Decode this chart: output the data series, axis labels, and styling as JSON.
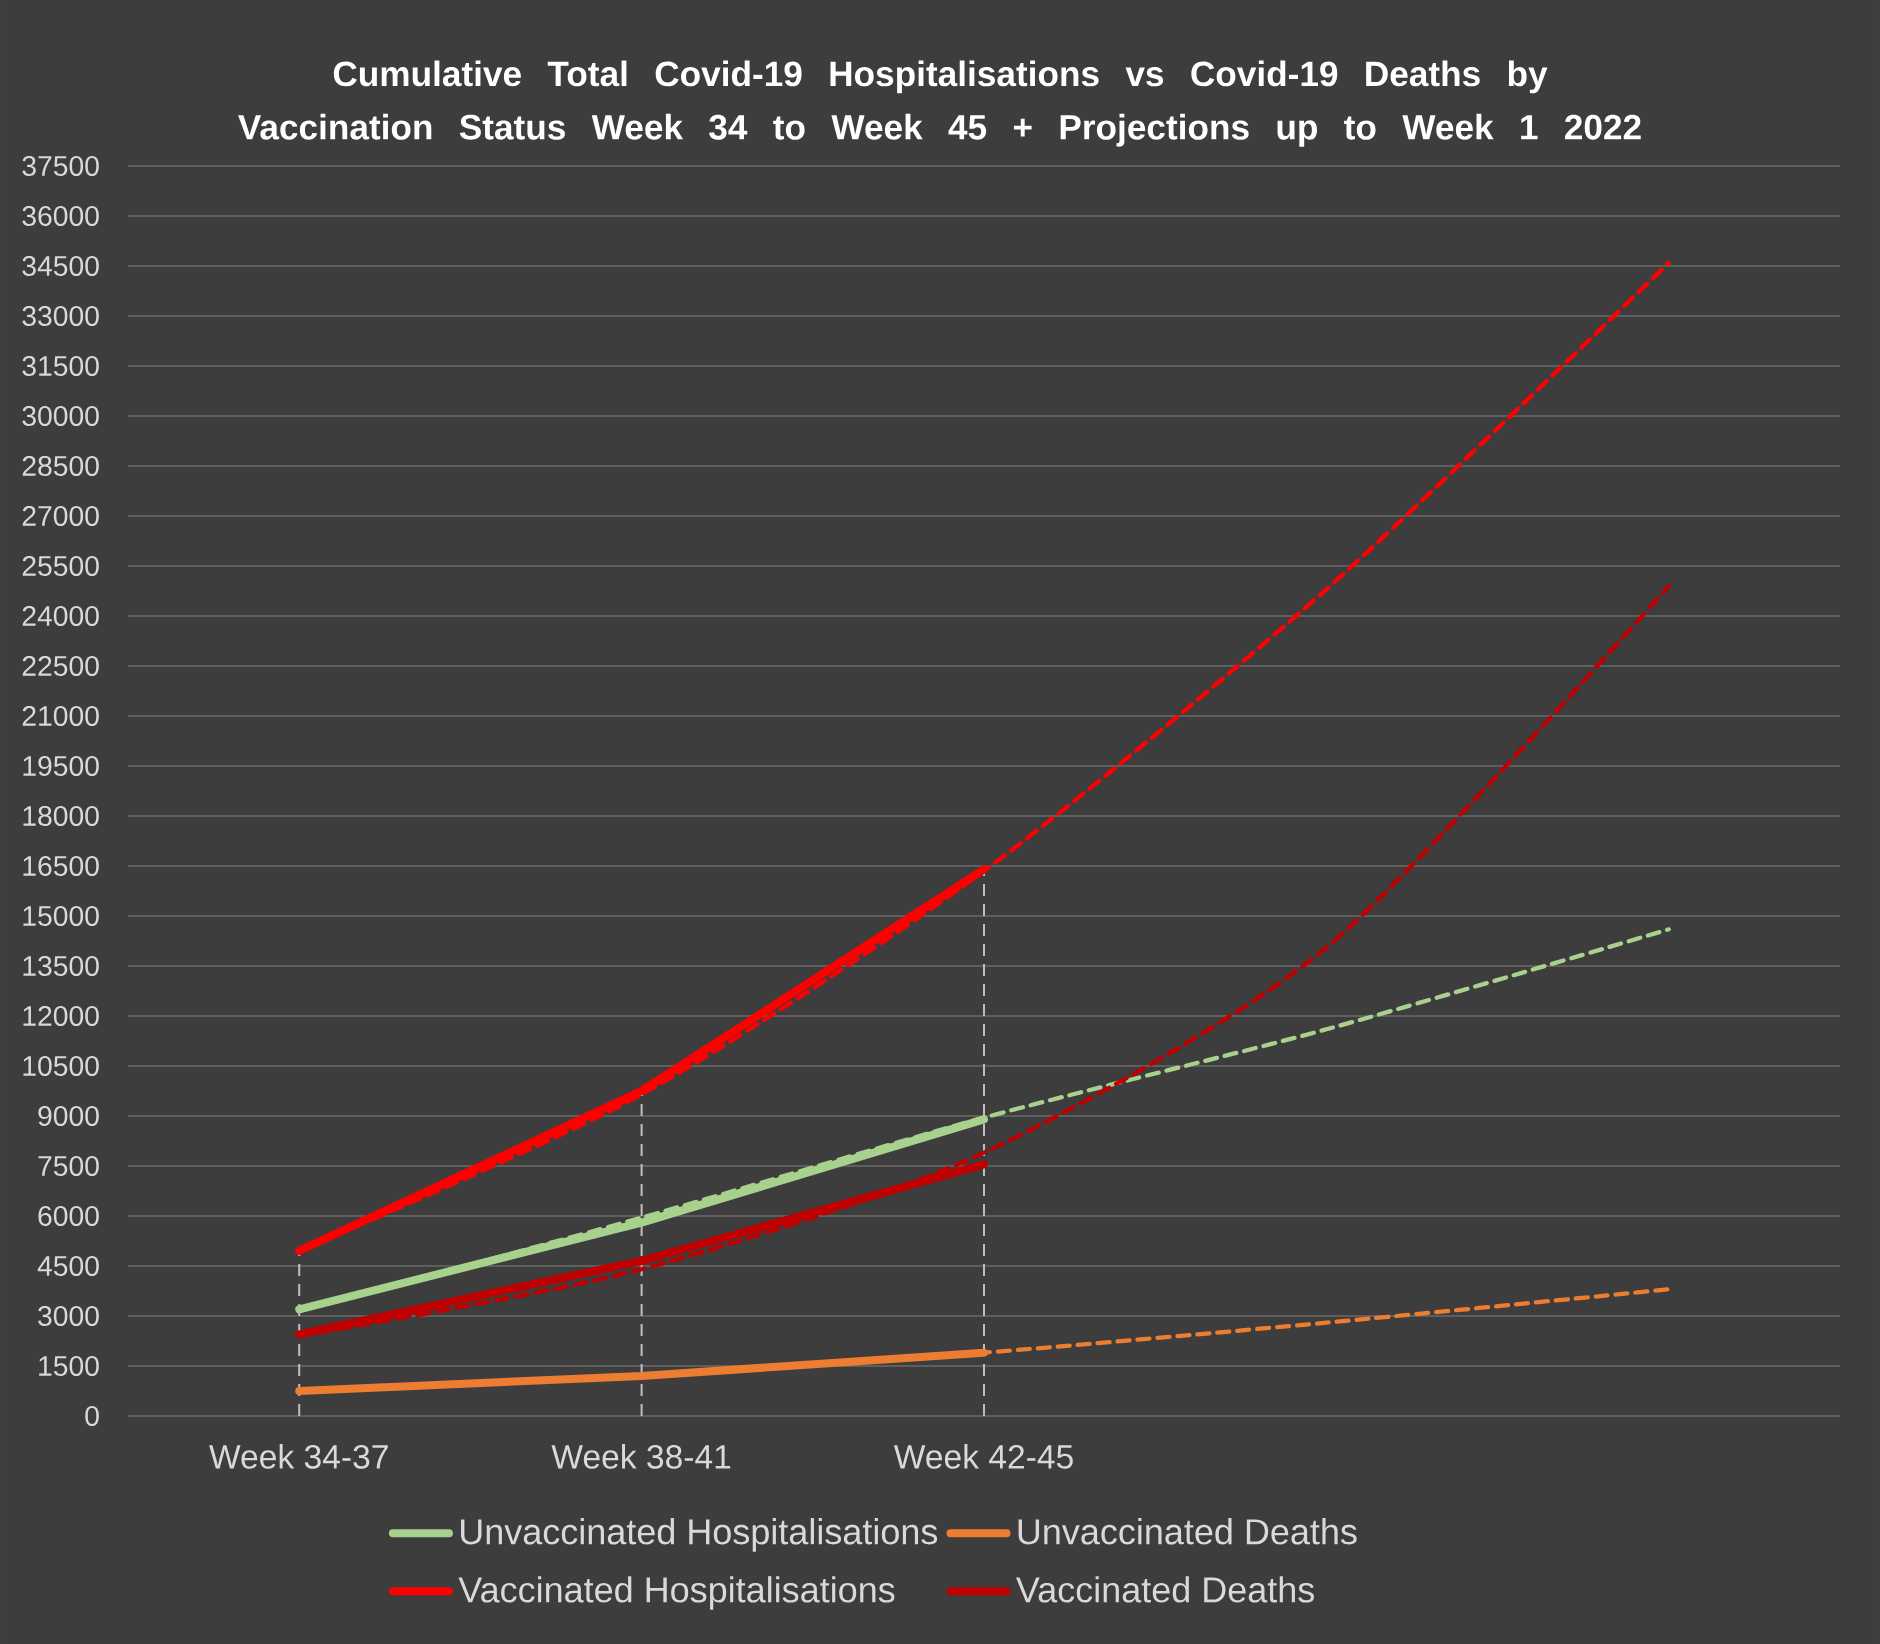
{
  "chart_data": {
    "type": "line",
    "title": "Cumulative Total Covid-19 Hospitalisations vs Covid-19 Deaths by Vaccination Status Week 34 to Week 45 + Projections up to Week 1 2022",
    "categories": [
      "Week 34-37",
      "Week 38-41",
      "Week 42-45",
      null,
      null
    ],
    "series": [
      {
        "name": "Unvaccinated Hospitalisations",
        "color": "#a9d18e",
        "values": [
          3200,
          5800,
          8900,
          null,
          null
        ]
      },
      {
        "name": "Unvaccinated Deaths",
        "color": "#ed7d31",
        "values": [
          750,
          1200,
          1900,
          null,
          null
        ]
      },
      {
        "name": "Vaccinated Hospitalisations",
        "color": "#ff0000",
        "values": [
          4950,
          9750,
          16400,
          null,
          null
        ]
      },
      {
        "name": "Vaccinated Deaths",
        "color": "#c00000",
        "values": [
          2450,
          4650,
          7550,
          null,
          null
        ]
      },
      {
        "color": "#a9d18e",
        "line_style": "dashed",
        "values": [
          3150,
          5950,
          8950,
          11600,
          14600
        ]
      },
      {
        "color": "#ed7d31",
        "line_style": "dashed",
        "values": [
          750,
          1200,
          1900,
          2800,
          3800
        ]
      },
      {
        "color": "#ff0000",
        "line_style": "dashed",
        "values": [
          4950,
          9650,
          16350,
          24800,
          34600
        ]
      },
      {
        "color": "#c00000",
        "line_style": "dashed",
        "values": [
          2400,
          4400,
          7900,
          14050,
          24900
        ]
      }
    ],
    "ylim": [
      0,
      37500
    ],
    "yticks": [
      0,
      1500,
      3000,
      4500,
      6000,
      7500,
      9000,
      10500,
      12000,
      13500,
      15000,
      16500,
      18000,
      19500,
      21000,
      22500,
      24000,
      25500,
      27000,
      28500,
      30000,
      31500,
      33000,
      34500,
      36000,
      37500
    ],
    "grid": "y",
    "legend": "bottom",
    "line_style": "solid",
    "ref_lines": [
      {
        "axis": "x",
        "value": "Week 34-37",
        "color": "#bfbfbf",
        "line_style": "dashed"
      },
      {
        "axis": "x",
        "value": "Week 38-41",
        "color": "#bfbfbf",
        "line_style": "dashed"
      },
      {
        "axis": "x",
        "value": "Week 42-45",
        "color": "#bfbfbf",
        "line_style": "dashed"
      }
    ]
  }
}
